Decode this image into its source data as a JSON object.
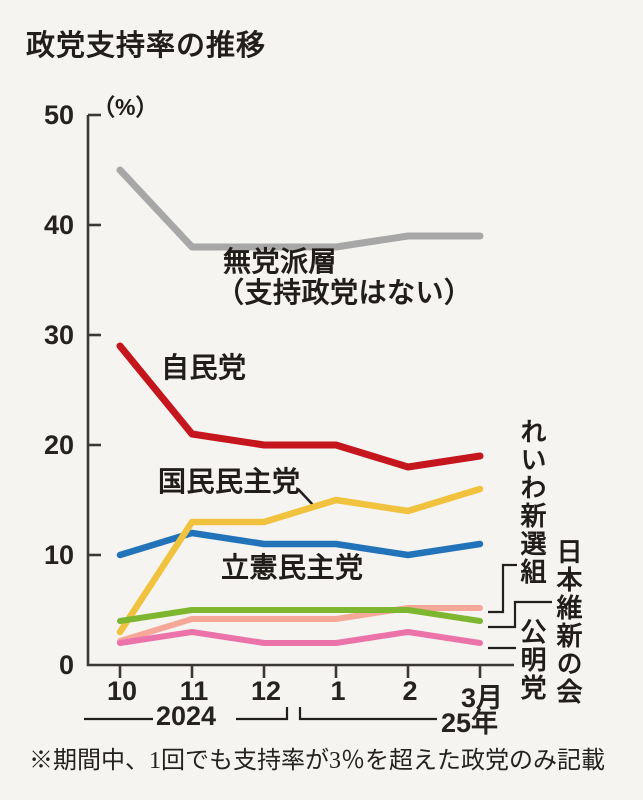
{
  "title": "政党支持率の推移",
  "y_axis": {
    "unit": "（%）",
    "ticks": [
      50,
      40,
      30,
      20,
      10,
      0
    ]
  },
  "x_axis": {
    "months": [
      "10",
      "11",
      "12",
      "1",
      "2",
      "3月"
    ],
    "year_left": "2024",
    "year_right": "25年"
  },
  "footnote": "※期間中、1回でも支持率が3％を超えた政党のみ記載",
  "labels": {
    "mutoha_line1": "無党派層",
    "mutoha_line2": "（支持政党はない）"
  },
  "chart_data": {
    "type": "line",
    "categories": [
      "2024-10",
      "2024-11",
      "2024-12",
      "2025-01",
      "2025-02",
      "2025-03"
    ],
    "x_tick_labels": [
      "10",
      "11",
      "12",
      "1",
      "2",
      "3月"
    ],
    "ylim": [
      0,
      50
    ],
    "ylabel": "%",
    "grid": false,
    "legend_position": "inline-labels",
    "series": [
      {
        "name": "無党派層（支持政党はない）",
        "short_name": "無党派層",
        "color": "#a7a7a7",
        "values": [
          45,
          38,
          38,
          38,
          39,
          39
        ]
      },
      {
        "name": "自民党",
        "color": "#c5161d",
        "values": [
          29,
          21,
          20,
          20,
          18,
          19
        ]
      },
      {
        "name": "国民民主党",
        "color": "#f0c23e",
        "values": [
          3,
          13,
          13,
          15,
          14,
          16
        ]
      },
      {
        "name": "立憲民主党",
        "color": "#2273ba",
        "values": [
          10,
          12,
          11,
          11,
          10,
          11
        ]
      },
      {
        "name": "れいわ新選組",
        "color": "#f6a898",
        "values": [
          2,
          4,
          4,
          4,
          5,
          5
        ]
      },
      {
        "name": "日本維新の会",
        "color": "#7eb62f",
        "values": [
          4,
          5,
          5,
          5,
          5,
          4
        ]
      },
      {
        "name": "公明党",
        "color": "#ec73aa",
        "values": [
          2,
          3,
          2,
          2,
          3,
          2
        ]
      }
    ]
  }
}
